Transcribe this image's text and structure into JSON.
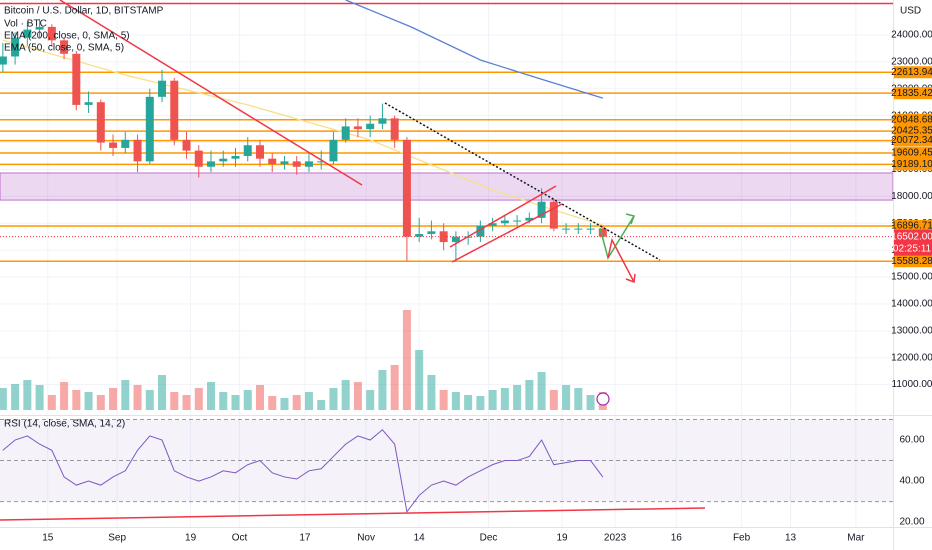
{
  "chart_data": {
    "type": "candlestick",
    "title": "Bitcoin / U.S. Dollar, 1D, BITSTAMP",
    "y_axis_label": "USD",
    "x": [
      0,
      3,
      6,
      9,
      12,
      15,
      18,
      21,
      24,
      27,
      30,
      33,
      36,
      39,
      42,
      45,
      48,
      51,
      54,
      57,
      60,
      63,
      66,
      69,
      72,
      75,
      78,
      81,
      84,
      87,
      90,
      93,
      96,
      99,
      102,
      105,
      108,
      111,
      114,
      117,
      120,
      123,
      126,
      129,
      132,
      135,
      138,
      141,
      144,
      147
    ],
    "open": [
      22900,
      23200,
      23900,
      24200,
      24300,
      23800,
      23300,
      21400,
      21500,
      20000,
      19800,
      20100,
      19300,
      21700,
      22300,
      20100,
      19700,
      19100,
      19300,
      19400,
      19500,
      19900,
      19400,
      19200,
      19300,
      19100,
      19300,
      19300,
      20100,
      20600,
      20500,
      20700,
      20900,
      20100,
      16500,
      16600,
      16700,
      16300,
      16500,
      16500,
      16900,
      17000,
      17100,
      17100,
      17200,
      17800,
      16800,
      16800,
      16800,
      16800
    ],
    "high": [
      23700,
      24100,
      24500,
      24600,
      24400,
      23900,
      23400,
      21900,
      21600,
      20300,
      20400,
      20300,
      22000,
      22700,
      22400,
      20400,
      19900,
      19700,
      19700,
      19800,
      20200,
      20100,
      19600,
      19500,
      19500,
      19600,
      19700,
      20400,
      20900,
      20900,
      21000,
      21450,
      21000,
      20200,
      17200,
      17100,
      17000,
      16700,
      16700,
      17100,
      17200,
      17300,
      17300,
      17400,
      18300,
      17900,
      17000,
      17000,
      17000,
      16900
    ],
    "low": [
      22600,
      22900,
      23600,
      23900,
      23600,
      23100,
      21200,
      21100,
      19700,
      19500,
      19600,
      18900,
      19200,
      21500,
      19900,
      19400,
      18700,
      18900,
      19100,
      19100,
      19300,
      19100,
      18900,
      19000,
      18800,
      18900,
      19000,
      19200,
      20000,
      20200,
      20200,
      20500,
      19800,
      15600,
      16300,
      16400,
      16000,
      15600,
      16200,
      16300,
      16700,
      16900,
      16900,
      17000,
      17000,
      16700,
      16600,
      16600,
      16600,
      16400
    ],
    "close": [
      23200,
      23900,
      24200,
      24300,
      23800,
      23300,
      21400,
      21500,
      20000,
      19800,
      20100,
      19300,
      21700,
      22300,
      20100,
      19700,
      19100,
      19300,
      19400,
      19500,
      19900,
      19400,
      19200,
      19300,
      19100,
      19300,
      19300,
      20100,
      20600,
      20500,
      20700,
      20900,
      20100,
      16500,
      16600,
      16700,
      16300,
      16500,
      16500,
      16900,
      17000,
      17100,
      17100,
      17200,
      17800,
      16800,
      16800,
      16800,
      16800,
      16500
    ],
    "up_color": "#26a69a",
    "down_color": "#ef5350",
    "xlim": [
      -0.7,
      218.1
    ],
    "ylim": [
      25300,
      9870
    ],
    "yticks": [
      {
        "value": 24000,
        "label": "24000.00"
      },
      {
        "value": 23000,
        "label": "23000.00"
      },
      {
        "value": 22000,
        "label": "22000.00"
      },
      {
        "value": 21000,
        "label": "21000.00"
      },
      {
        "value": 20000,
        "label": "20000.00"
      },
      {
        "value": 19000,
        "label": "19000.00"
      },
      {
        "value": 18000,
        "label": "18000.00"
      },
      {
        "value": 17000,
        "label": "17000.00"
      },
      {
        "value": 16000,
        "label": "16000.00"
      },
      {
        "value": 15000,
        "label": "15000.00"
      },
      {
        "value": 14000,
        "label": "14000.00"
      },
      {
        "value": 13000,
        "label": "13000.00"
      },
      {
        "value": 12000,
        "label": "12000.00"
      },
      {
        "value": 11000,
        "label": "11000.00"
      }
    ],
    "xticks": [
      {
        "value": 11,
        "label": "15"
      },
      {
        "value": 28,
        "label": "Sep"
      },
      {
        "value": 46,
        "label": "19"
      },
      {
        "value": 58,
        "label": "Oct"
      },
      {
        "value": 74,
        "label": "17"
      },
      {
        "value": 89,
        "label": "Nov"
      },
      {
        "value": 102,
        "label": "14"
      },
      {
        "value": 119,
        "label": "Dec"
      },
      {
        "value": 137,
        "label": "19"
      },
      {
        "value": 150,
        "label": "2023"
      },
      {
        "value": 165,
        "label": "16"
      },
      {
        "value": 181,
        "label": "Feb"
      },
      {
        "value": 193,
        "label": "13"
      },
      {
        "value": 209,
        "label": "Mar"
      }
    ],
    "volume": {
      "name": "Vol · BTC",
      "ylim": [
        0,
        120
      ],
      "values": [
        22,
        26,
        30,
        25,
        15,
        28,
        20,
        18,
        15,
        22,
        30,
        25,
        20,
        35,
        18,
        15,
        22,
        28,
        18,
        15,
        20,
        25,
        14,
        12,
        15,
        18,
        10,
        22,
        30,
        28,
        20,
        40,
        45,
        100,
        60,
        35,
        20,
        18,
        15,
        14,
        20,
        22,
        25,
        30,
        38,
        20,
        25,
        22,
        15,
        18
      ]
    },
    "indicators": [
      {
        "name": "EMA (200, close, 0, SMA, 5)",
        "color": "#5b7fd6",
        "x": [
          84,
          100,
          117,
          131,
          147
        ],
        "values": [
          25300,
          24300,
          23070,
          22400,
          21650
        ]
      },
      {
        "name": "EMA (50, close, 0, SMA, 5)",
        "color": "#f7e08a",
        "x": [
          0,
          30,
          60,
          90,
          105,
          120,
          135,
          147
        ],
        "values": [
          23810,
          22510,
          21400,
          20100,
          19170,
          18240,
          17490,
          16930
        ]
      }
    ],
    "levels": [
      {
        "value": 25170,
        "color": "#f23645"
      },
      {
        "value": 22613.94,
        "color": "#ff9800"
      },
      {
        "value": 21835.42,
        "color": "#ff9800"
      },
      {
        "value": 20848.68,
        "color": "#ff9800"
      },
      {
        "value": 20425.35,
        "color": "#ff9800"
      },
      {
        "value": 20072.34,
        "color": "#ff9800"
      },
      {
        "value": 19609.45,
        "color": "#ff9800"
      },
      {
        "value": 19189.1,
        "label": "19189.10",
        "color": "#ff9800"
      },
      {
        "value": 16896.71,
        "color": "#ff9800"
      },
      {
        "value": 15588.28,
        "color": "#ff9800"
      }
    ],
    "zone": {
      "range": [
        17860,
        18870
      ],
      "color": "#9c27b0"
    },
    "last_price": {
      "value": 16502,
      "label": "16502.00",
      "color": "#f23645"
    },
    "countdown": "02:25:11",
    "rsi": {
      "name": "RSI (14, close, SMA, 14, 2)",
      "color": "#7e57c2",
      "ylim": [
        17.6,
        72.2
      ],
      "bands": [
        70,
        50,
        30
      ],
      "yticks": [
        {
          "value": 60,
          "label": "60.00"
        },
        {
          "value": 40,
          "label": "40.00"
        },
        {
          "value": 20,
          "label": "20.00"
        }
      ],
      "values": [
        55,
        60,
        62,
        58,
        55,
        42,
        38,
        40,
        38,
        42,
        45,
        55,
        62,
        60,
        45,
        42,
        40,
        42,
        45,
        44,
        48,
        50,
        44,
        42,
        41,
        45,
        46,
        52,
        58,
        62,
        60,
        65,
        58,
        25,
        33,
        38,
        40,
        38,
        42,
        45,
        48,
        50,
        50,
        52,
        60,
        48,
        49,
        50,
        50,
        42
      ]
    }
  }
}
